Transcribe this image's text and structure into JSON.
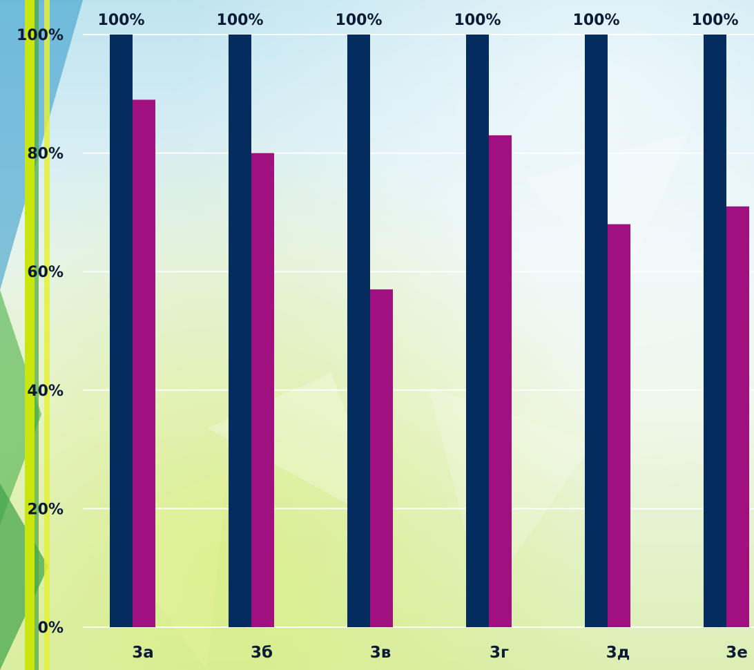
{
  "chart_data": {
    "type": "bar",
    "categories": [
      "3а",
      "3б",
      "3в",
      "3г",
      "3д",
      "3е"
    ],
    "series": [
      {
        "values": [
          100,
          100,
          100,
          100,
          100,
          100
        ],
        "color": "#052c5e",
        "data_labels": [
          "100%",
          "100%",
          "100%",
          "100%",
          "100%",
          "100%"
        ]
      },
      {
        "values": [
          89,
          80,
          57,
          83,
          68,
          71
        ],
        "color": "#a1107f"
      }
    ],
    "y_ticks": [
      "0%",
      "20%",
      "40%",
      "60%",
      "80%",
      "100%"
    ],
    "ylim": [
      0,
      100
    ],
    "title": "",
    "xlabel": "",
    "ylabel": "",
    "grid": true,
    "legend": "none"
  },
  "decor": {
    "left_stripe_colors": [
      "#4aa83a",
      "#c9e60f",
      "#e3f03a"
    ],
    "left_edge_color": "#2e98c9"
  }
}
